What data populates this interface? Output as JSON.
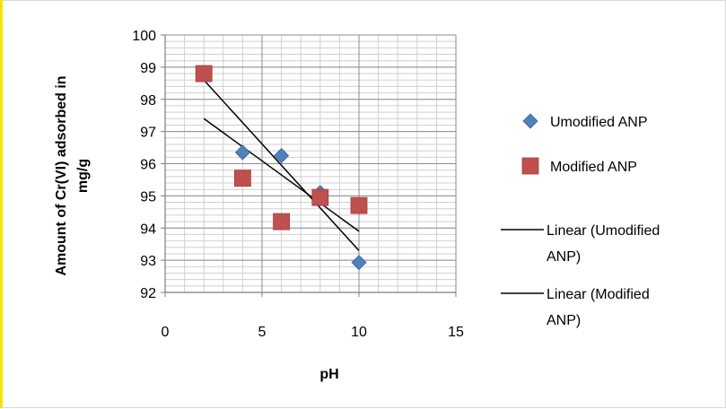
{
  "chart_data": {
    "type": "scatter",
    "title": "",
    "xlabel": "pH",
    "ylabel_lines": [
      "Amount of Cr(VI) adsorbed in",
      "mg/g"
    ],
    "xlim": [
      0,
      15
    ],
    "ylim": [
      92,
      100
    ],
    "x_ticks": [
      "0",
      "5",
      "10",
      "15"
    ],
    "y_ticks": [
      "92",
      "93",
      "94",
      "95",
      "96",
      "97",
      "98",
      "99",
      "100"
    ],
    "grid": "on",
    "legend_position": "right",
    "series": [
      {
        "name": "Umodified ANP",
        "marker": "diamond",
        "color": "#4f81bd",
        "points": [
          [
            2,
            98.8
          ],
          [
            4,
            96.35
          ],
          [
            6,
            96.25
          ],
          [
            8,
            95.1
          ],
          [
            10,
            92.93
          ]
        ]
      },
      {
        "name": "Modified ANP",
        "marker": "square",
        "color": "#c0504d",
        "points": [
          [
            2,
            98.8
          ],
          [
            4,
            95.55
          ],
          [
            6,
            94.2
          ],
          [
            8,
            94.95
          ],
          [
            10,
            94.7
          ]
        ]
      }
    ],
    "trendlines": [
      {
        "name_lines": [
          "Linear (Umodified",
          "ANP)"
        ],
        "color": "#000000",
        "from": [
          2,
          98.6
        ],
        "to": [
          10,
          93.3
        ]
      },
      {
        "name_lines": [
          "Linear (Modified",
          "ANP)"
        ],
        "color": "#000000",
        "from": [
          2,
          97.4
        ],
        "to": [
          10,
          93.9
        ]
      }
    ]
  }
}
